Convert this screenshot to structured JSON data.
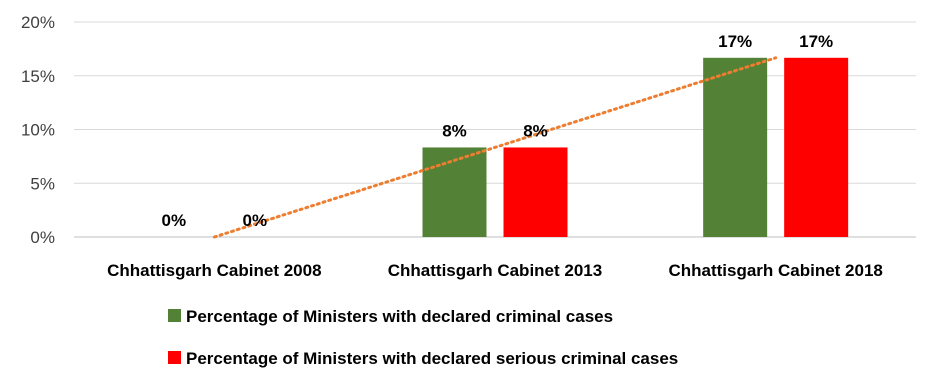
{
  "chart_data": {
    "type": "bar",
    "categories": [
      "Chhattisgarh Cabinet 2008",
      "Chhattisgarh  Cabinet 2013",
      "Chhattisgarh Cabinet 2018"
    ],
    "series": [
      {
        "name": "Percentage  of Ministers with declared criminal cases",
        "values": [
          0,
          8.33,
          16.67
        ],
        "labels": [
          "0%",
          "8%",
          "17%"
        ],
        "color": "#538135"
      },
      {
        "name": "Percentage of Ministers with declared serious criminal cases",
        "values": [
          0,
          8.33,
          16.67
        ],
        "labels": [
          "0%",
          "8%",
          "17%"
        ],
        "color": "#ff0000"
      }
    ],
    "yticks": [
      "0%",
      "5%",
      "10%",
      "15%",
      "20%"
    ],
    "ylim": [
      0,
      20
    ],
    "grid": true,
    "trendline": {
      "style": "dotted",
      "color": "#ed7d31",
      "series": 0,
      "type": "linear"
    },
    "legend_position": "bottom",
    "title": "",
    "xlabel": "",
    "ylabel": ""
  }
}
